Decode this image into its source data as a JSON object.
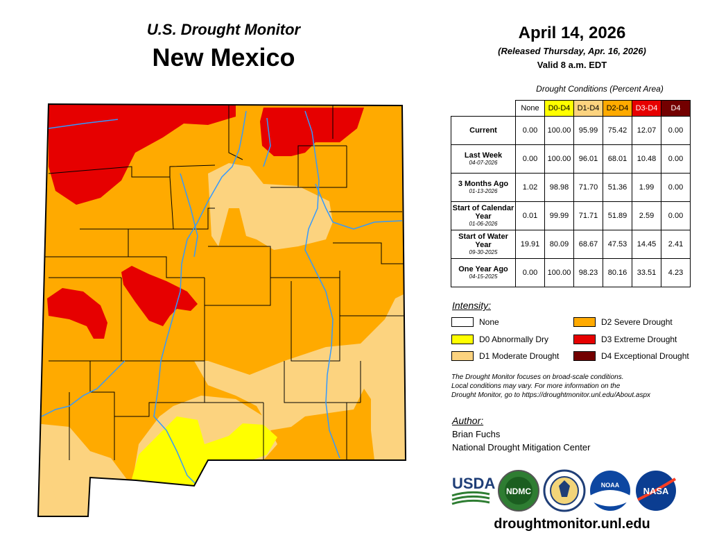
{
  "header": {
    "monitor_title": "U.S. Drought Monitor",
    "state_title": "New Mexico",
    "date": "April 14, 2026",
    "released": "(Released Thursday, Apr. 16, 2026)",
    "valid": "Valid 8 a.m. EDT"
  },
  "table": {
    "caption": "Drought Conditions (Percent Area)",
    "columns": [
      {
        "label": "None",
        "color": "#ffffff",
        "text_color": "#000000"
      },
      {
        "label": "D0-D4",
        "color": "#ffff00",
        "text_color": "#000000"
      },
      {
        "label": "D1-D4",
        "color": "#fcd37f",
        "text_color": "#000000"
      },
      {
        "label": "D2-D4",
        "color": "#ffaa00",
        "text_color": "#000000"
      },
      {
        "label": "D3-D4",
        "color": "#e60000",
        "text_color": "#ffffff"
      },
      {
        "label": "D4",
        "color": "#730000",
        "text_color": "#ffffff"
      }
    ],
    "rows": [
      {
        "label": "Current",
        "sub": "",
        "values": [
          "0.00",
          "100.00",
          "95.99",
          "75.42",
          "12.07",
          "0.00"
        ]
      },
      {
        "label": "Last Week",
        "sub": "04-07-2026",
        "values": [
          "0.00",
          "100.00",
          "96.01",
          "68.01",
          "10.48",
          "0.00"
        ]
      },
      {
        "label": "3 Months Ago",
        "sub": "01-13-2026",
        "values": [
          "1.02",
          "98.98",
          "71.70",
          "51.36",
          "1.99",
          "0.00"
        ]
      },
      {
        "label": "Start of Calendar Year",
        "sub": "01-06-2026",
        "values": [
          "0.01",
          "99.99",
          "71.71",
          "51.89",
          "2.59",
          "0.00"
        ]
      },
      {
        "label": "Start of Water Year",
        "sub": "09-30-2025",
        "values": [
          "19.91",
          "80.09",
          "68.67",
          "47.53",
          "14.45",
          "2.41"
        ]
      },
      {
        "label": "One Year Ago",
        "sub": "04-15-2025",
        "values": [
          "0.00",
          "100.00",
          "98.23",
          "80.16",
          "33.51",
          "4.23"
        ]
      }
    ]
  },
  "legend": {
    "title": "Intensity:",
    "items": [
      {
        "label": "None",
        "color": "#ffffff"
      },
      {
        "label": "D0 Abnormally Dry",
        "color": "#ffff00"
      },
      {
        "label": "D1 Moderate Drought",
        "color": "#fcd37f"
      },
      {
        "label": "D2 Severe Drought",
        "color": "#ffaa00"
      },
      {
        "label": "D3 Extreme Drought",
        "color": "#e60000"
      },
      {
        "label": "D4 Exceptional Drought",
        "color": "#730000"
      }
    ]
  },
  "note": {
    "line1": "The Drought Monitor focuses on broad-scale conditions.",
    "line2": "Local conditions may vary. For more information on the",
    "line3": "Drought Monitor, go to https://droughtmonitor.unl.edu/About.aspx"
  },
  "author": {
    "title": "Author:",
    "name": "Brian Fuchs",
    "org": "National Drought Mitigation Center"
  },
  "logos": {
    "usda": "USDA",
    "ndmc": "NDMC",
    "noaa": "NOAA",
    "nasa": "NASA"
  },
  "website": "droughtmonitor.unl.edu"
}
